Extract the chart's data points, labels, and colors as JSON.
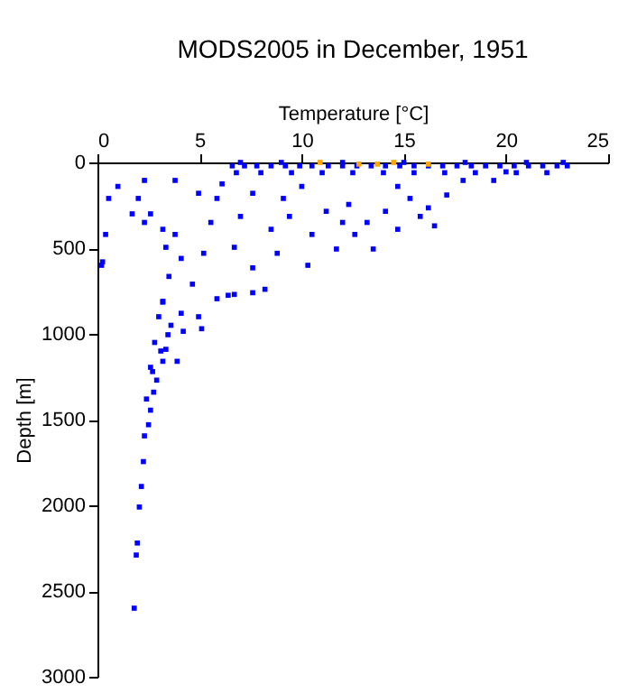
{
  "chart_data": {
    "type": "scatter",
    "title": "MODS2005 in December, 1951",
    "xlabel": "Temperature [°C]",
    "ylabel": "Depth [m]",
    "xlim": [
      0,
      25
    ],
    "xticks": [
      0,
      5,
      10,
      15,
      20,
      25
    ],
    "ylim": [
      3000,
      0
    ],
    "yticks": [
      0,
      500,
      1000,
      1500,
      2000,
      2500,
      3000
    ],
    "grid": false,
    "legend": false,
    "marker": "square",
    "series": [
      {
        "color": "#0000ff",
        "x": [
          1.8,
          1.9,
          1.95,
          2.05,
          2.15,
          2.25,
          2.3,
          2.5,
          2.6,
          2.75,
          2.9,
          2.6,
          3.2,
          3.35,
          3.9,
          3.45,
          4.2,
          5.1,
          4.1,
          4.95,
          3.2,
          5.85,
          6.7,
          7.6,
          8.2,
          3.0,
          3.6,
          2.8,
          3.1,
          2.4,
          2.7,
          0.4,
          0.25,
          0.2,
          1.0,
          2.3,
          2.0,
          2.6,
          1.7,
          3.2,
          3.35,
          4.1,
          5.2,
          3.5,
          3.2,
          4.65,
          6.4,
          4.95,
          5.85,
          6.7,
          7.6,
          8.8,
          8.5,
          10.5,
          11.7,
          10.3,
          12.6,
          13.5,
          14.7,
          15.8,
          16.5,
          17.1,
          17.9,
          19.4,
          20.0,
          9.1,
          11.2,
          12.3,
          14.1,
          15.3,
          7.6,
          5.55,
          7.0,
          9.4,
          12.0,
          13.2,
          16.2,
          14.7,
          10.0,
          6.1,
          3.8,
          0.55,
          2.3,
          3.8,
          6.6,
          7.2,
          7.8,
          8.5,
          9.2,
          9.9,
          10.5,
          11.3,
          12.0,
          12.7,
          13.4,
          14.1,
          14.8,
          15.5,
          16.2,
          16.9,
          17.6,
          18.3,
          19.0,
          19.7,
          20.4,
          21.1,
          21.8,
          22.5,
          23.0,
          6.8,
          8.0,
          9.5,
          11.0,
          12.5,
          14.0,
          15.5,
          17.0,
          18.5,
          20.5,
          22.0,
          7.0,
          9.0,
          12.0,
          15.0,
          18.0,
          21.0,
          22.8
        ],
        "values": [
          2600,
          2290,
          2220,
          2010,
          1890,
          1745,
          1595,
          1530,
          1445,
          1340,
          1270,
          1195,
          1160,
          1090,
          1160,
          1005,
          985,
          970,
          880,
          900,
          815,
          795,
          770,
          760,
          740,
          900,
          950,
          1050,
          1100,
          1380,
          1220,
          420,
          580,
          600,
          140,
          105,
          210,
          300,
          300,
          390,
          495,
          560,
          530,
          665,
          810,
          710,
          775,
          180,
          210,
          495,
          615,
          530,
          390,
          420,
          505,
          600,
          420,
          505,
          390,
          315,
          370,
          190,
          105,
          105,
          55,
          210,
          285,
          245,
          285,
          210,
          180,
          350,
          315,
          315,
          350,
          350,
          265,
          140,
          140,
          125,
          105,
          210,
          350,
          420,
          20,
          20,
          20,
          20,
          20,
          20,
          20,
          20,
          20,
          20,
          20,
          20,
          20,
          20,
          20,
          20,
          20,
          20,
          20,
          20,
          20,
          20,
          20,
          20,
          20,
          60,
          60,
          60,
          60,
          60,
          60,
          60,
          60,
          60,
          60,
          60,
          0,
          0,
          0,
          0,
          0,
          0,
          0
        ]
      },
      {
        "color": "#ffa500",
        "x": [
          10.9,
          12.8,
          13.7,
          14.5,
          16.2
        ],
        "values": [
          0,
          10,
          10,
          0,
          10
        ]
      }
    ]
  }
}
